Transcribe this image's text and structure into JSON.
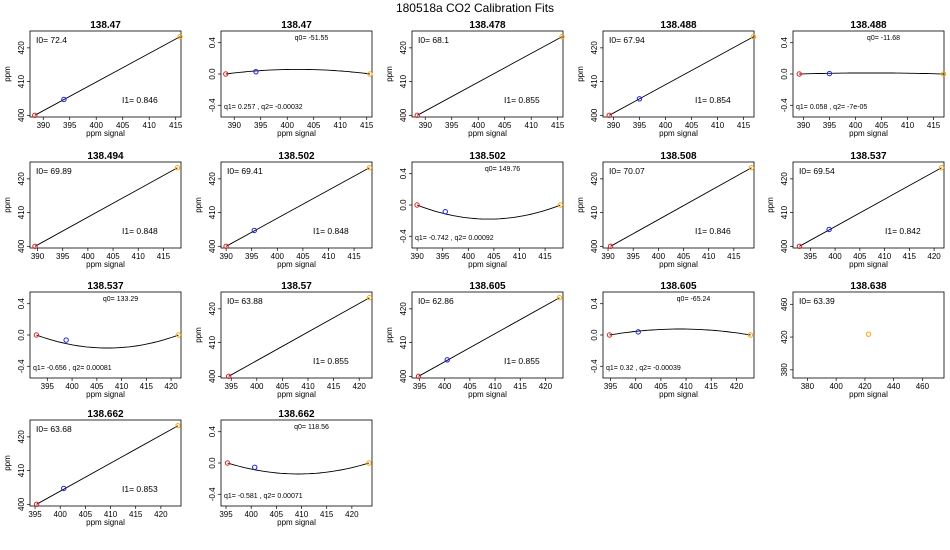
{
  "figure": {
    "title": "180518a   CO2 Calibration Fits"
  },
  "chart_data": [
    {
      "type": "line",
      "title": "138.47",
      "xlabel": "ppm signal",
      "ylabel": "ppm",
      "kind": "linear",
      "xlim": [
        387.5,
        416
      ],
      "ylim": [
        399.5,
        425
      ],
      "xticks": [
        "390",
        "395",
        "400",
        "405",
        "410",
        "415"
      ],
      "yticks": [
        "400",
        "410",
        "420"
      ],
      "points": [
        {
          "x": 388.4,
          "y": 400.0,
          "color": "#e02020"
        },
        {
          "x": 393.9,
          "y": 404.7,
          "color": "#2020e0"
        },
        {
          "x": 415.8,
          "y": 423.3,
          "color": "#ffa500"
        }
      ],
      "labels": {
        "i0": "I0= 72.4",
        "i1": "I1= 0.846"
      }
    },
    {
      "type": "line",
      "title": "138.47",
      "xlabel": "ppm signal",
      "ylabel": "",
      "kind": "residual",
      "xlim": [
        387.5,
        416
      ],
      "ylim": [
        -0.55,
        0.55
      ],
      "xticks": [
        "390",
        "395",
        "400",
        "405",
        "410",
        "415"
      ],
      "yticks": [
        "-0.4",
        "0.0",
        "0.4"
      ],
      "points": [
        {
          "x": 388.4,
          "y": 0.0,
          "color": "#e02020"
        },
        {
          "x": 394.1,
          "y": 0.03,
          "color": "#2020e0"
        },
        {
          "x": 415.6,
          "y": 0.0,
          "color": "#ffa500"
        }
      ],
      "curve": {
        "x0": 388.4,
        "x1": 415.6,
        "q1": 0.257,
        "q2": -0.00032
      },
      "labels": {
        "q0": "q0= -51.55",
        "q12": "q1= 0.257 , q2= -0.00032"
      }
    },
    {
      "type": "line",
      "title": "138.478",
      "xlabel": "ppm signal",
      "ylabel": "ppm",
      "kind": "linear",
      "xlim": [
        387.5,
        416
      ],
      "ylim": [
        399.5,
        425
      ],
      "xticks": [
        "390",
        "395",
        "400",
        "405",
        "410",
        "415"
      ],
      "yticks": [
        "400",
        "410",
        "420"
      ],
      "points": [
        {
          "x": 388.5,
          "y": 400.0,
          "color": "#e02020"
        },
        {
          "x": 415.8,
          "y": 423.3,
          "color": "#ffa500"
        }
      ],
      "labels": {
        "i0": "I0= 68.1",
        "i1": "I1= 0.855"
      }
    },
    {
      "type": "line",
      "title": "138.488",
      "xlabel": "ppm signal",
      "ylabel": "ppm",
      "kind": "linear",
      "xlim": [
        388,
        417
      ],
      "ylim": [
        399.5,
        425
      ],
      "xticks": [
        "390",
        "395",
        "400",
        "405",
        "410",
        "415"
      ],
      "yticks": [
        "400",
        "410",
        "420"
      ],
      "points": [
        {
          "x": 389.2,
          "y": 400.0,
          "color": "#e02020"
        },
        {
          "x": 395.0,
          "y": 404.9,
          "color": "#2020e0"
        },
        {
          "x": 416.9,
          "y": 423.3,
          "color": "#ffa500"
        }
      ],
      "labels": {
        "i0": "I0= 67.94",
        "i1": "I1= 0.854"
      }
    },
    {
      "type": "line",
      "title": "138.488",
      "xlabel": "ppm signal",
      "ylabel": "",
      "kind": "residual",
      "xlim": [
        388,
        417
      ],
      "ylim": [
        -0.55,
        0.55
      ],
      "xticks": [
        "390",
        "395",
        "400",
        "405",
        "410",
        "415"
      ],
      "yticks": [
        "-0.4",
        "0.0",
        "0.4"
      ],
      "points": [
        {
          "x": 389.2,
          "y": 0.0,
          "color": "#e02020"
        },
        {
          "x": 395.0,
          "y": 0.005,
          "color": "#2020e0"
        },
        {
          "x": 416.9,
          "y": 0.0,
          "color": "#ffa500"
        }
      ],
      "curve": {
        "x0": 389.2,
        "x1": 416.9,
        "q1": 0.058,
        "q2": -7e-05
      },
      "labels": {
        "q0": "q0= -11.68",
        "q12": "q1= 0.058 , q2= -7e-05"
      }
    },
    {
      "type": "line",
      "title": "138.494",
      "xlabel": "ppm signal",
      "ylabel": "ppm",
      "kind": "linear",
      "xlim": [
        388.5,
        418.5
      ],
      "ylim": [
        399.5,
        425
      ],
      "xticks": [
        "390",
        "395",
        "400",
        "405",
        "410",
        "415"
      ],
      "yticks": [
        "400",
        "410",
        "420"
      ],
      "points": [
        {
          "x": 389.5,
          "y": 400.0,
          "color": "#e02020"
        },
        {
          "x": 417.8,
          "y": 423.3,
          "color": "#ffa500"
        }
      ],
      "labels": {
        "i0": "I0= 69.89",
        "i1": "I1= 0.848"
      }
    },
    {
      "type": "line",
      "title": "138.502",
      "xlabel": "ppm signal",
      "ylabel": "ppm",
      "kind": "linear",
      "xlim": [
        389,
        418.5
      ],
      "ylim": [
        399.5,
        425
      ],
      "xticks": [
        "390",
        "395",
        "400",
        "405",
        "410",
        "415"
      ],
      "yticks": [
        "400",
        "410",
        "420"
      ],
      "points": [
        {
          "x": 390.0,
          "y": 400.0,
          "color": "#e02020"
        },
        {
          "x": 395.5,
          "y": 404.7,
          "color": "#2020e0"
        },
        {
          "x": 418.0,
          "y": 423.3,
          "color": "#ffa500"
        }
      ],
      "labels": {
        "i0": "I0= 69.41",
        "i1": "I1= 0.848"
      }
    },
    {
      "type": "line",
      "title": "138.502",
      "xlabel": "ppm signal",
      "ylabel": "",
      "kind": "residual",
      "xlim": [
        389,
        418.5
      ],
      "ylim": [
        -0.55,
        0.55
      ],
      "xticks": [
        "390",
        "395",
        "400",
        "405",
        "410",
        "415"
      ],
      "yticks": [
        "-0.4",
        "0.0",
        "0.4"
      ],
      "points": [
        {
          "x": 390.0,
          "y": 0.0,
          "color": "#e02020"
        },
        {
          "x": 395.5,
          "y": -0.085,
          "color": "#2020e0"
        },
        {
          "x": 418.0,
          "y": 0.0,
          "color": "#ffa500"
        }
      ],
      "curve": {
        "x0": 390.0,
        "x1": 418.0,
        "q1": -0.742,
        "q2": 0.00092
      },
      "labels": {
        "q0": "q0= 149.76",
        "q12": "q1= -0.742 , q2= 0.00092"
      }
    },
    {
      "type": "line",
      "title": "138.508",
      "xlabel": "ppm signal",
      "ylabel": "ppm",
      "kind": "linear",
      "xlim": [
        389,
        419
      ],
      "ylim": [
        399.5,
        425
      ],
      "xticks": [
        "390",
        "395",
        "400",
        "405",
        "410",
        "415"
      ],
      "yticks": [
        "400",
        "410",
        "420"
      ],
      "points": [
        {
          "x": 390.5,
          "y": 400.0,
          "color": "#e02020"
        },
        {
          "x": 418.5,
          "y": 423.3,
          "color": "#ffa500"
        }
      ],
      "labels": {
        "i0": "I0= 70.07",
        "i1": "I1= 0.846"
      }
    },
    {
      "type": "line",
      "title": "138.537",
      "xlabel": "ppm signal",
      "ylabel": "ppm",
      "kind": "linear",
      "xlim": [
        391.5,
        422
      ],
      "ylim": [
        399.5,
        425
      ],
      "xticks": [
        "395",
        "400",
        "405",
        "410",
        "415",
        "420"
      ],
      "yticks": [
        "400",
        "410",
        "420"
      ],
      "points": [
        {
          "x": 392.8,
          "y": 400.0,
          "color": "#e02020"
        },
        {
          "x": 398.8,
          "y": 405.0,
          "color": "#2020e0"
        },
        {
          "x": 421.5,
          "y": 423.3,
          "color": "#ffa500"
        }
      ],
      "labels": {
        "i0": "I0= 69.54",
        "i1": "I1= 0.842"
      }
    },
    {
      "type": "line",
      "title": "138.537",
      "xlabel": "ppm signal",
      "ylabel": "",
      "kind": "residual",
      "xlim": [
        391.5,
        422
      ],
      "ylim": [
        -0.55,
        0.55
      ],
      "xticks": [
        "395",
        "400",
        "405",
        "410",
        "415",
        "420"
      ],
      "yticks": [
        "-0.4",
        "0.0",
        "0.4"
      ],
      "points": [
        {
          "x": 392.8,
          "y": 0.0,
          "color": "#e02020"
        },
        {
          "x": 398.8,
          "y": -0.065,
          "color": "#2020e0"
        },
        {
          "x": 421.5,
          "y": 0.0,
          "color": "#ffa500"
        }
      ],
      "curve": {
        "x0": 392.8,
        "x1": 421.5,
        "q1": -0.656,
        "q2": 0.00081
      },
      "labels": {
        "q0": "q0= 133.29",
        "q12": "q1= -0.656 , q2= 0.00081"
      }
    },
    {
      "type": "line",
      "title": "138.57",
      "xlabel": "ppm signal",
      "ylabel": "ppm",
      "kind": "linear",
      "xlim": [
        393,
        422.5
      ],
      "ylim": [
        399.5,
        425
      ],
      "xticks": [
        "395",
        "400",
        "405",
        "410",
        "415",
        "420"
      ],
      "yticks": [
        "400",
        "410",
        "420"
      ],
      "points": [
        {
          "x": 394.5,
          "y": 400.0,
          "color": "#e02020"
        },
        {
          "x": 422.0,
          "y": 423.3,
          "color": "#ffa500"
        }
      ],
      "labels": {
        "i0": "I0= 63.88",
        "i1": "I1= 0.855"
      }
    },
    {
      "type": "line",
      "title": "138.605",
      "xlabel": "ppm signal",
      "ylabel": "ppm",
      "kind": "linear",
      "xlim": [
        393.5,
        423.5
      ],
      "ylim": [
        399.5,
        425
      ],
      "xticks": [
        "395",
        "400",
        "405",
        "410",
        "415",
        "420"
      ],
      "yticks": [
        "400",
        "410",
        "420"
      ],
      "points": [
        {
          "x": 394.8,
          "y": 400.0,
          "color": "#e02020"
        },
        {
          "x": 400.5,
          "y": 404.9,
          "color": "#2020e0"
        },
        {
          "x": 422.8,
          "y": 423.3,
          "color": "#ffa500"
        }
      ],
      "labels": {
        "i0": "I0= 62.86",
        "i1": "I1= 0.855"
      }
    },
    {
      "type": "line",
      "title": "138.605",
      "xlabel": "ppm signal",
      "ylabel": "",
      "kind": "residual",
      "xlim": [
        393.5,
        423.5
      ],
      "ylim": [
        -0.55,
        0.55
      ],
      "xticks": [
        "395",
        "400",
        "405",
        "410",
        "415",
        "420"
      ],
      "yticks": [
        "-0.4",
        "0.0",
        "0.4"
      ],
      "points": [
        {
          "x": 394.8,
          "y": 0.0,
          "color": "#e02020"
        },
        {
          "x": 400.5,
          "y": 0.04,
          "color": "#2020e0"
        },
        {
          "x": 422.8,
          "y": 0.0,
          "color": "#ffa500"
        }
      ],
      "curve": {
        "x0": 394.8,
        "x1": 422.8,
        "q1": 0.32,
        "q2": -0.00039
      },
      "labels": {
        "q0": "q0= -65.24",
        "q12": "q1= 0.32 , q2= -0.00039"
      }
    },
    {
      "type": "scatter",
      "title": "138.638",
      "xlabel": "ppm signal",
      "ylabel": "",
      "kind": "single",
      "xlim": [
        370,
        475
      ],
      "ylim": [
        370,
        475
      ],
      "xticks": [
        "380",
        "400",
        "420",
        "440",
        "460"
      ],
      "yticks": [
        "380",
        "420",
        "460"
      ],
      "points": [
        {
          "x": 422.5,
          "y": 423.5,
          "color": "#ffa500"
        }
      ],
      "labels": {
        "i0": "I0= 63.39"
      }
    },
    {
      "type": "line",
      "title": "138.662",
      "xlabel": "ppm signal",
      "ylabel": "ppm",
      "kind": "linear",
      "xlim": [
        394,
        424
      ],
      "ylim": [
        399.5,
        425
      ],
      "xticks": [
        "395",
        "400",
        "405",
        "410",
        "415",
        "420"
      ],
      "yticks": [
        "400",
        "410",
        "420"
      ],
      "points": [
        {
          "x": 395.3,
          "y": 400.0,
          "color": "#e02020"
        },
        {
          "x": 400.7,
          "y": 404.7,
          "color": "#2020e0"
        },
        {
          "x": 423.4,
          "y": 423.3,
          "color": "#ffa500"
        }
      ],
      "labels": {
        "i0": "I0= 63.68",
        "i1": "I1= 0.853"
      }
    },
    {
      "type": "line",
      "title": "138.662",
      "xlabel": "ppm signal",
      "ylabel": "",
      "kind": "residual",
      "xlim": [
        394,
        424
      ],
      "ylim": [
        -0.55,
        0.55
      ],
      "xticks": [
        "395",
        "400",
        "405",
        "410",
        "415",
        "420"
      ],
      "yticks": [
        "-0.4",
        "0.0",
        "0.4"
      ],
      "points": [
        {
          "x": 395.3,
          "y": 0.0,
          "color": "#e02020"
        },
        {
          "x": 400.7,
          "y": -0.055,
          "color": "#2020e0"
        },
        {
          "x": 423.4,
          "y": 0.0,
          "color": "#ffa500"
        }
      ],
      "curve": {
        "x0": 395.3,
        "x1": 423.4,
        "q1": -0.581,
        "q2": 0.00071
      },
      "labels": {
        "q0": "q0= 118.56",
        "q12": "q1= -0.581 , q2= 0.00071"
      }
    }
  ]
}
